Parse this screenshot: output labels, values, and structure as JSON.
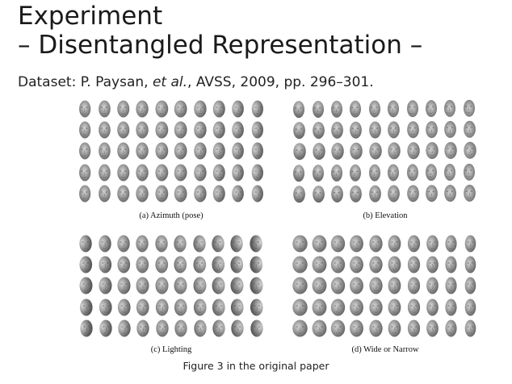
{
  "slide": {
    "title": "Experiment",
    "subtitle": "– Disentangled Representation –",
    "dataset_prefix": "Dataset: P. Paysan, ",
    "dataset_italic": "et al.",
    "dataset_suffix": ", AVSS, 2009, pp. 296–301.",
    "figure_caption": "Figure 3 in the original paper"
  },
  "figure": {
    "panels": [
      {
        "id": "a",
        "caption": "(a) Azimuth (pose)",
        "variation": "azimuth"
      },
      {
        "id": "b",
        "caption": "(b) Elevation",
        "variation": "elevation"
      },
      {
        "id": "c",
        "caption": "(c) Lighting",
        "variation": "lighting"
      },
      {
        "id": "d",
        "caption": "(d) Wide or Narrow",
        "variation": "width"
      }
    ],
    "rows_per_panel": 5,
    "columns_per_panel": 10
  },
  "colors": {
    "face_light": "#d6d6d6",
    "face_dark": "#5a5a5a",
    "text": "#1a1a1a"
  }
}
